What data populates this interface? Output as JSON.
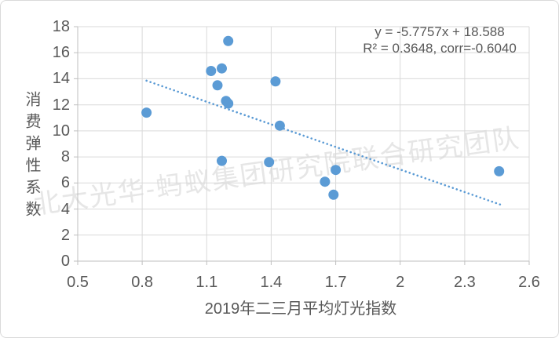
{
  "watermark": {
    "text": "北大光华-蚂蚁集团研究院联合研究团队"
  },
  "chart_data": {
    "type": "scatter",
    "title": "",
    "xlabel": "2019年二三月平均灯光指数",
    "ylabel": "消费弹性系数",
    "xlim": [
      0.5,
      2.6
    ],
    "ylim": [
      0,
      18
    ],
    "grid": true,
    "x_ticks": [
      0.5,
      0.8,
      1.1,
      1.4,
      1.7,
      2,
      2.3,
      2.6
    ],
    "x_tick_labels": [
      "0.5",
      "0.8",
      "1.1",
      "1.4",
      "1.7",
      "2",
      "2.3",
      "2.6"
    ],
    "y_ticks": [
      0,
      2,
      4,
      6,
      8,
      10,
      12,
      14,
      16,
      18
    ],
    "y_tick_labels": [
      "0",
      "2",
      "4",
      "6",
      "8",
      "10",
      "12",
      "14",
      "16",
      "18"
    ],
    "points": [
      {
        "x": 0.82,
        "y": 11.4
      },
      {
        "x": 1.12,
        "y": 14.6
      },
      {
        "x": 1.17,
        "y": 14.8
      },
      {
        "x": 1.15,
        "y": 13.5
      },
      {
        "x": 1.2,
        "y": 16.9
      },
      {
        "x": 1.19,
        "y": 12.3
      },
      {
        "x": 1.2,
        "y": 12.1
      },
      {
        "x": 1.17,
        "y": 7.7
      },
      {
        "x": 1.39,
        "y": 7.6
      },
      {
        "x": 1.42,
        "y": 13.8
      },
      {
        "x": 1.44,
        "y": 10.4
      },
      {
        "x": 1.65,
        "y": 6.1
      },
      {
        "x": 1.7,
        "y": 7.0
      },
      {
        "x": 1.69,
        "y": 5.1
      },
      {
        "x": 2.46,
        "y": 6.9
      }
    ],
    "trendline": {
      "slope": -5.7757,
      "intercept": 18.588,
      "x_start": 0.82,
      "x_end": 2.48,
      "style": "dotted"
    },
    "annotation": {
      "line1": "y = -5.7757x + 18.588",
      "line2": "R² = 0.3648, corr=-0.6040"
    },
    "legend": null,
    "colors": {
      "point": "#5B9BD5",
      "trend": "#5B9BD5",
      "grid": "#D9D9D9",
      "axis": "#BFBFBF",
      "text": "#595959",
      "watermark": "#E6E6E6",
      "frame": "#DADADA"
    }
  }
}
